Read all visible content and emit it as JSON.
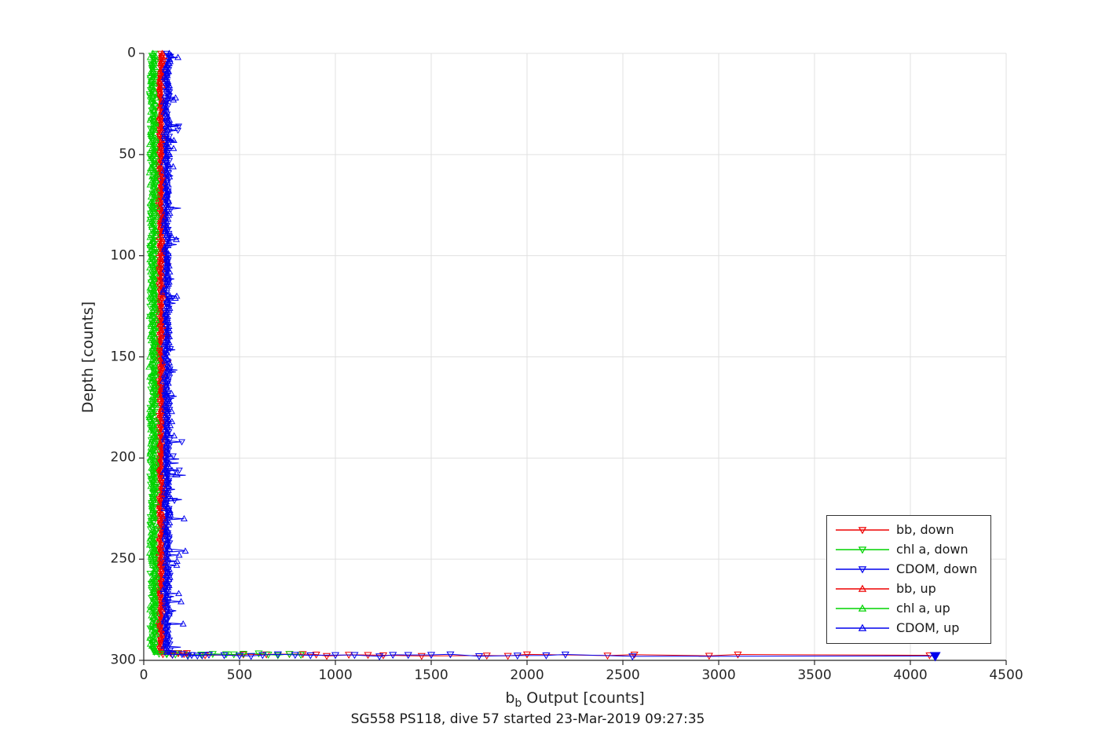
{
  "chart_data": {
    "type": "line",
    "title": "SG558 PS118, dive 57 started 23-Mar-2019 09:27:35",
    "xlabel": "b_b Output [counts]",
    "xlabel_base": "b",
    "xlabel_sub": "b",
    "xlabel_rest": " Output [counts]",
    "ylabel": "Depth [counts]",
    "xlim": [
      0,
      4500
    ],
    "ylim": [
      0,
      300
    ],
    "y_reversed": true,
    "grid": true,
    "grid_color": "#e0e0e0",
    "axis_color": "#262626",
    "xticks": [
      0,
      500,
      1000,
      1500,
      2000,
      2500,
      3000,
      3500,
      4000,
      4500
    ],
    "yticks": [
      0,
      50,
      100,
      150,
      200,
      250,
      300
    ],
    "legend_position": "inside-lower-right",
    "legend_entries": [
      "bb, down",
      "chl a, down",
      "CDOM, down",
      "bb, up",
      "chl a, up",
      "CDOM, up"
    ],
    "series": [
      {
        "name": "bb, down",
        "color": "#ee0000",
        "marker": "v",
        "seed": 11,
        "profile": {
          "depth_start": 0,
          "depth_end": 296.5,
          "step": 0.5,
          "base": 88,
          "noise": 10,
          "wobble_amp": 4,
          "wobble_period": 21
        },
        "spike_chance": 0.015,
        "spike_max": 25,
        "bottom_depth": 297.3,
        "bottom_points": [
          150,
          210,
          320,
          520,
          640,
          760,
          830,
          900,
          955,
          1070,
          1170,
          1250,
          1450,
          1790,
          1900,
          2000,
          2420,
          2560,
          2950,
          3100,
          4100
        ]
      },
      {
        "name": "chl a, down",
        "color": "#00d300",
        "marker": "v",
        "seed": 22,
        "profile": {
          "depth_start": 0,
          "depth_end": 296.5,
          "step": 0.5,
          "base": 52,
          "noise": 20,
          "wobble_amp": 3,
          "wobble_period": 27
        },
        "spike_chance": 0.0,
        "spike_max": 0,
        "bottom_depth": 296.9,
        "bottom_points": [
          120,
          180,
          230,
          300,
          360,
          430,
          470,
          520,
          600,
          650,
          700,
          760,
          820
        ]
      },
      {
        "name": "CDOM, down",
        "color": "#0000ee",
        "marker": "v",
        "seed": 33,
        "profile": {
          "depth_start": 0,
          "depth_end": 296.5,
          "step": 0.5,
          "base": 118,
          "noise": 14,
          "wobble_amp": 6,
          "wobble_period": 17
        },
        "spike_chance": 0.04,
        "spike_max": 55,
        "bottom_depth": 297.6,
        "bottom_points": [
          230,
          280,
          340,
          420,
          500,
          560,
          620,
          700,
          790,
          870,
          1000,
          1100,
          1230,
          1300,
          1380,
          1500,
          1600,
          1750,
          1950,
          2100,
          2200,
          2550,
          4130
        ],
        "bottom_end_filled": true
      },
      {
        "name": "bb, up",
        "color": "#ee0000",
        "marker": "^",
        "seed": 44,
        "profile": {
          "depth_start": 0,
          "depth_end": 296.5,
          "step": 0.5,
          "base": 90,
          "noise": 10,
          "wobble_amp": 4,
          "wobble_period": 19
        },
        "spike_chance": 0.015,
        "spike_max": 25,
        "bottom_depth": 297.0,
        "bottom_points": [
          100,
          140,
          180,
          225
        ]
      },
      {
        "name": "chl a, up",
        "color": "#00d300",
        "marker": "^",
        "seed": 55,
        "profile": {
          "depth_start": 0,
          "depth_end": 296.5,
          "step": 0.5,
          "base": 50,
          "noise": 20,
          "wobble_amp": 3,
          "wobble_period": 23
        },
        "spike_chance": 0.0,
        "spike_max": 0,
        "bottom_depth": 296.7,
        "bottom_points": [
          80,
          120,
          165
        ]
      },
      {
        "name": "CDOM, up",
        "color": "#0000ee",
        "marker": "^",
        "seed": 66,
        "profile": {
          "depth_start": 0,
          "depth_end": 296.5,
          "step": 0.5,
          "base": 120,
          "noise": 14,
          "wobble_amp": 6,
          "wobble_period": 15
        },
        "spike_chance": 0.05,
        "spike_max": 60,
        "bottom_depth": 297.2,
        "bottom_points": [
          150,
          200,
          250,
          305
        ],
        "outliers": [
          [
            148,
            206.5
          ],
          [
            170,
            208
          ]
        ]
      }
    ]
  }
}
